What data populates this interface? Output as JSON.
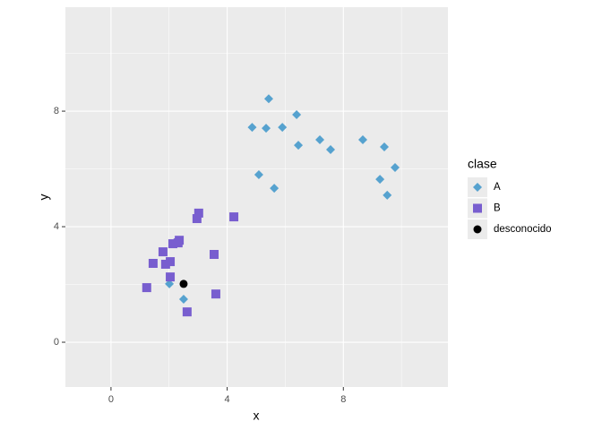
{
  "chart_data": {
    "type": "scatter",
    "x_label": "x",
    "y_label": "y",
    "xlim": [
      -1.57,
      11.6
    ],
    "ylim": [
      -1.55,
      11.6
    ],
    "xticks": [
      0,
      4,
      8
    ],
    "yticks": [
      0,
      4,
      8
    ],
    "xminor": [
      2,
      6,
      10
    ],
    "yminor": [
      2,
      6,
      10
    ],
    "grid": true,
    "legend_title": "clase",
    "legend_position": "right",
    "series": [
      {
        "name": "A",
        "color": "#56A2CF",
        "marker": "diamond",
        "x": [
          5.43,
          4.86,
          5.34,
          5.9,
          6.39,
          6.45,
          7.19,
          7.56,
          8.67,
          9.41,
          9.78,
          9.26,
          9.51,
          5.09,
          5.62,
          2.01,
          2.5
        ],
        "values": [
          8.43,
          7.44,
          7.41,
          7.44,
          7.88,
          6.82,
          7.01,
          6.67,
          7.01,
          6.76,
          6.05,
          5.64,
          5.09,
          5.8,
          5.33,
          2.02,
          1.49
        ]
      },
      {
        "name": "B",
        "color": "#785ECF",
        "marker": "square",
        "x": [
          1.23,
          1.45,
          1.79,
          1.88,
          2.04,
          2.04,
          2.13,
          2.31,
          2.35,
          2.96,
          3.02,
          4.23,
          3.55,
          3.61,
          2.62
        ],
        "values": [
          1.89,
          2.73,
          3.13,
          2.7,
          2.79,
          2.26,
          3.41,
          3.44,
          3.53,
          4.28,
          4.47,
          4.34,
          3.04,
          1.67,
          1.05
        ]
      },
      {
        "name": "desconocido",
        "color": "#000000",
        "marker": "circle",
        "x": [
          2.5
        ],
        "values": [
          2.02
        ]
      }
    ]
  }
}
